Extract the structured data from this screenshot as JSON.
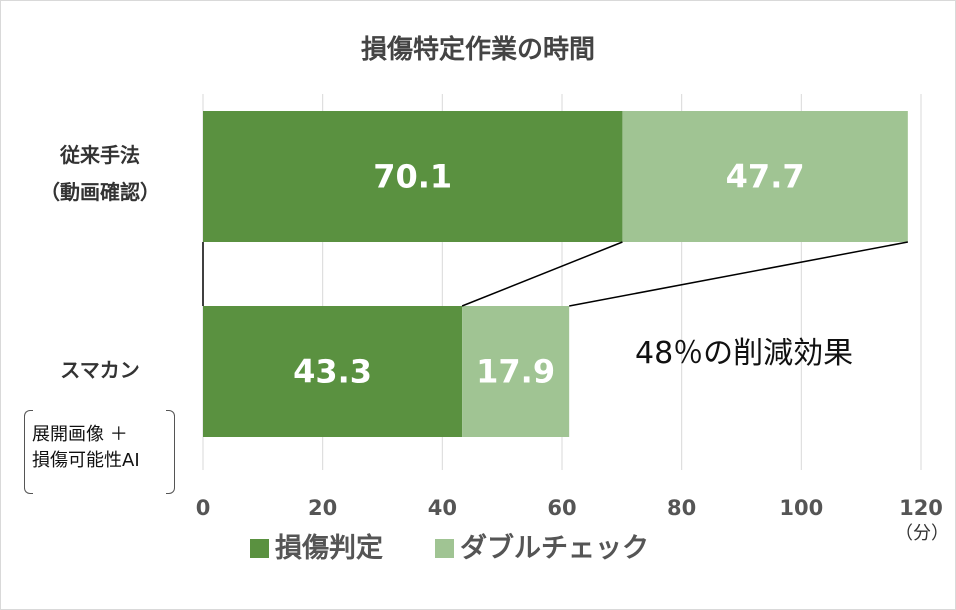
{
  "chart_data": {
    "type": "bar",
    "orientation": "horizontal",
    "stacked": true,
    "title": "損傷特定作業の時間",
    "categories": [
      {
        "label_lines": [
          "従来手法",
          "（動画確認）"
        ]
      },
      {
        "label_lines": [
          "スマカン"
        ],
        "note_lines": [
          "展開画像 ＋",
          "損傷可能性AI"
        ]
      }
    ],
    "series": [
      {
        "name": "損傷判定",
        "color": "#5a9140",
        "values": [
          70.1,
          43.3
        ],
        "labels": [
          "70.1",
          "43.3"
        ]
      },
      {
        "name": "ダブルチェック",
        "color": "#a0c493",
        "values": [
          47.7,
          17.9
        ],
        "labels": [
          "47.7",
          "17.9"
        ]
      }
    ],
    "xlim": [
      0,
      120
    ],
    "xticks": [
      "0",
      "20",
      "40",
      "60",
      "80",
      "100",
      "120"
    ],
    "xunit": "（分）",
    "grid": true,
    "legend_position": "bottom",
    "annotation": "48％の削減効果"
  }
}
